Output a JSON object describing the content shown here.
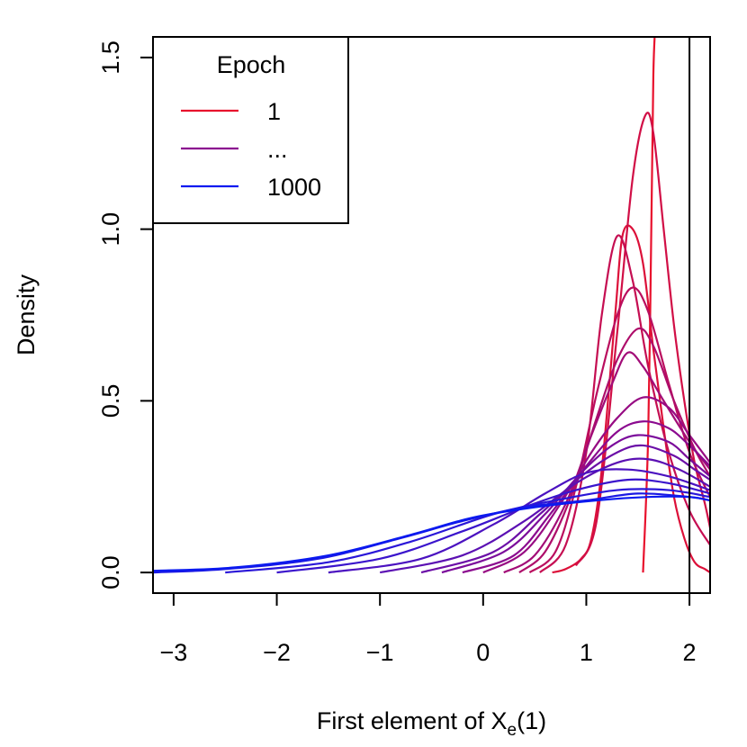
{
  "chart_data": {
    "type": "line",
    "title": "",
    "xlabel": "First element of X",
    "xlabel_sub": "e",
    "xlabel_suffix": "(1)",
    "ylabel": "Density",
    "xlim": [
      -3.2,
      2.2
    ],
    "ylim": [
      -0.06,
      1.56
    ],
    "xticks": [
      -3,
      -2,
      -1,
      0,
      1,
      2
    ],
    "xtick_labels": [
      "−3",
      "−2",
      "−1",
      "0",
      "1",
      "2"
    ],
    "yticks": [
      0.0,
      0.5,
      1.0,
      1.5
    ],
    "ytick_labels": [
      "0.0",
      "0.5",
      "1.0",
      "1.5"
    ],
    "vlines": [
      2.0
    ],
    "grid": false,
    "legend": {
      "title": "Epoch",
      "position": "top-left",
      "entries": [
        {
          "label": "1",
          "color": "#E8112D"
        },
        {
          "label": "...",
          "color": "#8B0A8F"
        },
        {
          "label": "1000",
          "color": "#0A1AF0"
        }
      ]
    },
    "colors": {
      "start": "#E8112D",
      "mid": "#8B0A8F",
      "end": "#0A1AF0"
    },
    "series": [
      {
        "values": [
          [
            1.55,
            0
          ],
          [
            1.6,
            0.4
          ],
          [
            1.63,
            1.0
          ],
          [
            1.65,
            1.45
          ],
          [
            1.67,
            1.6
          ]
        ]
      },
      {
        "values": [
          [
            0.67,
            0
          ],
          [
            0.8,
            0.01
          ],
          [
            0.95,
            0.04
          ],
          [
            1.05,
            0.1
          ],
          [
            1.15,
            0.3
          ],
          [
            1.28,
            0.75
          ],
          [
            1.35,
            0.98
          ],
          [
            1.45,
            1.0
          ],
          [
            1.55,
            0.9
          ],
          [
            1.65,
            0.65
          ],
          [
            1.75,
            0.42
          ],
          [
            1.85,
            0.22
          ],
          [
            1.95,
            0.1
          ],
          [
            2.05,
            0.03
          ],
          [
            2.15,
            0.01
          ],
          [
            2.2,
            0.0
          ]
        ]
      },
      {
        "values": [
          [
            0.9,
            0.02
          ],
          [
            1.1,
            0.15
          ],
          [
            1.3,
            0.7
          ],
          [
            1.45,
            1.15
          ],
          [
            1.57,
            1.33
          ],
          [
            1.65,
            1.28
          ],
          [
            1.75,
            1.0
          ],
          [
            1.85,
            0.72
          ],
          [
            1.95,
            0.5
          ],
          [
            2.05,
            0.32
          ],
          [
            2.15,
            0.2
          ],
          [
            2.2,
            0.13
          ]
        ]
      },
      {
        "values": [
          [
            0.55,
            0
          ],
          [
            0.8,
            0.08
          ],
          [
            1.0,
            0.35
          ],
          [
            1.15,
            0.75
          ],
          [
            1.3,
            0.98
          ],
          [
            1.45,
            0.85
          ],
          [
            1.6,
            0.6
          ],
          [
            1.8,
            0.35
          ],
          [
            2.0,
            0.18
          ],
          [
            2.2,
            0.08
          ]
        ]
      },
      {
        "values": [
          [
            0.45,
            0
          ],
          [
            0.7,
            0.06
          ],
          [
            0.9,
            0.25
          ],
          [
            1.1,
            0.52
          ],
          [
            1.3,
            0.75
          ],
          [
            1.45,
            0.83
          ],
          [
            1.6,
            0.76
          ],
          [
            1.8,
            0.55
          ],
          [
            2.0,
            0.35
          ],
          [
            2.2,
            0.22
          ]
        ]
      },
      {
        "values": [
          [
            0.35,
            0
          ],
          [
            0.6,
            0.06
          ],
          [
            0.85,
            0.22
          ],
          [
            1.1,
            0.45
          ],
          [
            1.3,
            0.62
          ],
          [
            1.5,
            0.71
          ],
          [
            1.65,
            0.66
          ],
          [
            1.85,
            0.5
          ],
          [
            2.05,
            0.36
          ],
          [
            2.2,
            0.28
          ]
        ]
      },
      {
        "values": [
          [
            0.2,
            0
          ],
          [
            0.5,
            0.05
          ],
          [
            0.8,
            0.2
          ],
          [
            1.05,
            0.4
          ],
          [
            1.25,
            0.55
          ],
          [
            1.4,
            0.64
          ],
          [
            1.55,
            0.6
          ],
          [
            1.75,
            0.5
          ],
          [
            2.0,
            0.38
          ],
          [
            2.2,
            0.3
          ]
        ]
      },
      {
        "values": [
          [
            0.0,
            0
          ],
          [
            0.4,
            0.06
          ],
          [
            0.75,
            0.2
          ],
          [
            1.05,
            0.35
          ],
          [
            1.3,
            0.45
          ],
          [
            1.55,
            0.51
          ],
          [
            1.8,
            0.48
          ],
          [
            2.0,
            0.4
          ],
          [
            2.2,
            0.32
          ]
        ]
      },
      {
        "values": [
          [
            -0.2,
            0
          ],
          [
            0.3,
            0.05
          ],
          [
            0.65,
            0.17
          ],
          [
            1.0,
            0.31
          ],
          [
            1.3,
            0.41
          ],
          [
            1.55,
            0.44
          ],
          [
            1.8,
            0.42
          ],
          [
            2.0,
            0.37
          ],
          [
            2.2,
            0.31
          ]
        ]
      },
      {
        "values": [
          [
            -0.4,
            0
          ],
          [
            0.2,
            0.06
          ],
          [
            0.6,
            0.17
          ],
          [
            0.95,
            0.29
          ],
          [
            1.25,
            0.37
          ],
          [
            1.5,
            0.4
          ],
          [
            1.8,
            0.38
          ],
          [
            2.0,
            0.33
          ],
          [
            2.2,
            0.28
          ]
        ]
      },
      {
        "values": [
          [
            -0.6,
            0
          ],
          [
            0.1,
            0.06
          ],
          [
            0.55,
            0.17
          ],
          [
            0.95,
            0.28
          ],
          [
            1.3,
            0.35
          ],
          [
            1.55,
            0.37
          ],
          [
            1.85,
            0.34
          ],
          [
            2.05,
            0.3
          ],
          [
            2.2,
            0.27
          ]
        ]
      },
      {
        "values": [
          [
            -1.0,
            0
          ],
          [
            -0.2,
            0.05
          ],
          [
            0.4,
            0.15
          ],
          [
            0.9,
            0.26
          ],
          [
            1.3,
            0.32
          ],
          [
            1.6,
            0.33
          ],
          [
            1.9,
            0.3
          ],
          [
            2.2,
            0.25
          ]
        ]
      },
      {
        "values": [
          [
            -1.5,
            0
          ],
          [
            -0.6,
            0.04
          ],
          [
            0.1,
            0.14
          ],
          [
            0.6,
            0.23
          ],
          [
            1.0,
            0.29
          ],
          [
            1.4,
            0.3
          ],
          [
            1.8,
            0.28
          ],
          [
            2.2,
            0.24
          ]
        ]
      },
      {
        "values": [
          [
            -2.0,
            0
          ],
          [
            -1.0,
            0.04
          ],
          [
            -0.2,
            0.12
          ],
          [
            0.4,
            0.19
          ],
          [
            0.9,
            0.24
          ],
          [
            1.4,
            0.27
          ],
          [
            1.8,
            0.26
          ],
          [
            2.2,
            0.23
          ]
        ]
      },
      {
        "values": [
          [
            -2.5,
            0
          ],
          [
            -1.5,
            0.03
          ],
          [
            -0.7,
            0.09
          ],
          [
            0.1,
            0.17
          ],
          [
            0.7,
            0.21
          ],
          [
            1.3,
            0.24
          ],
          [
            1.8,
            0.24
          ],
          [
            2.2,
            0.22
          ]
        ]
      },
      {
        "values": [
          [
            -3.2,
            0.0
          ],
          [
            -2.5,
            0.01
          ],
          [
            -1.6,
            0.04
          ],
          [
            -0.8,
            0.1
          ],
          [
            -0.2,
            0.15
          ],
          [
            0.4,
            0.19
          ],
          [
            1.0,
            0.21
          ],
          [
            1.5,
            0.23
          ],
          [
            2.0,
            0.22
          ],
          [
            2.2,
            0.21
          ]
        ]
      },
      {
        "values": [
          [
            -3.2,
            0.005
          ],
          [
            -2.4,
            0.015
          ],
          [
            -1.5,
            0.05
          ],
          [
            -0.7,
            0.11
          ],
          [
            -0.1,
            0.16
          ],
          [
            0.5,
            0.19
          ],
          [
            1.1,
            0.21
          ],
          [
            1.6,
            0.22
          ],
          [
            2.0,
            0.22
          ],
          [
            2.2,
            0.21
          ]
        ]
      }
    ]
  }
}
